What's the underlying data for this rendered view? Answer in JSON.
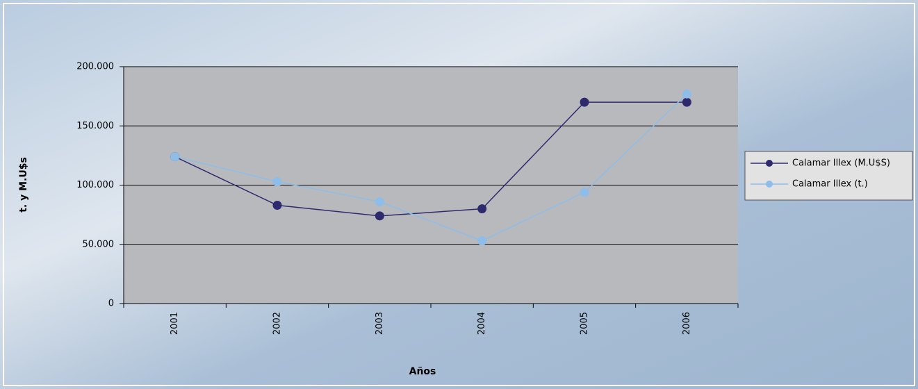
{
  "chart_data": {
    "type": "line",
    "x_label": "Años",
    "y_label": "t. y M.U$s",
    "categories": [
      "2001",
      "2002",
      "2003",
      "2004",
      "2005",
      "2006"
    ],
    "series": [
      {
        "name": "Calamar Illex (M.U$S)",
        "color": "#2e2a6e",
        "values": [
          124000,
          83000,
          74000,
          80000,
          170000,
          170000
        ]
      },
      {
        "name": "Calamar Illex (t.)",
        "color": "#8dbde8",
        "values": [
          124000,
          103000,
          86000,
          53000,
          94000,
          177000
        ]
      }
    ],
    "ylim": [
      0,
      200000
    ],
    "yticks": [
      {
        "value": 0,
        "label": "0"
      },
      {
        "value": 50000,
        "label": "50.000"
      },
      {
        "value": 100000,
        "label": "100.000"
      },
      {
        "value": 150000,
        "label": "150.000"
      },
      {
        "value": 200000,
        "label": "200.000"
      }
    ],
    "grid": true,
    "legend": "right"
  }
}
